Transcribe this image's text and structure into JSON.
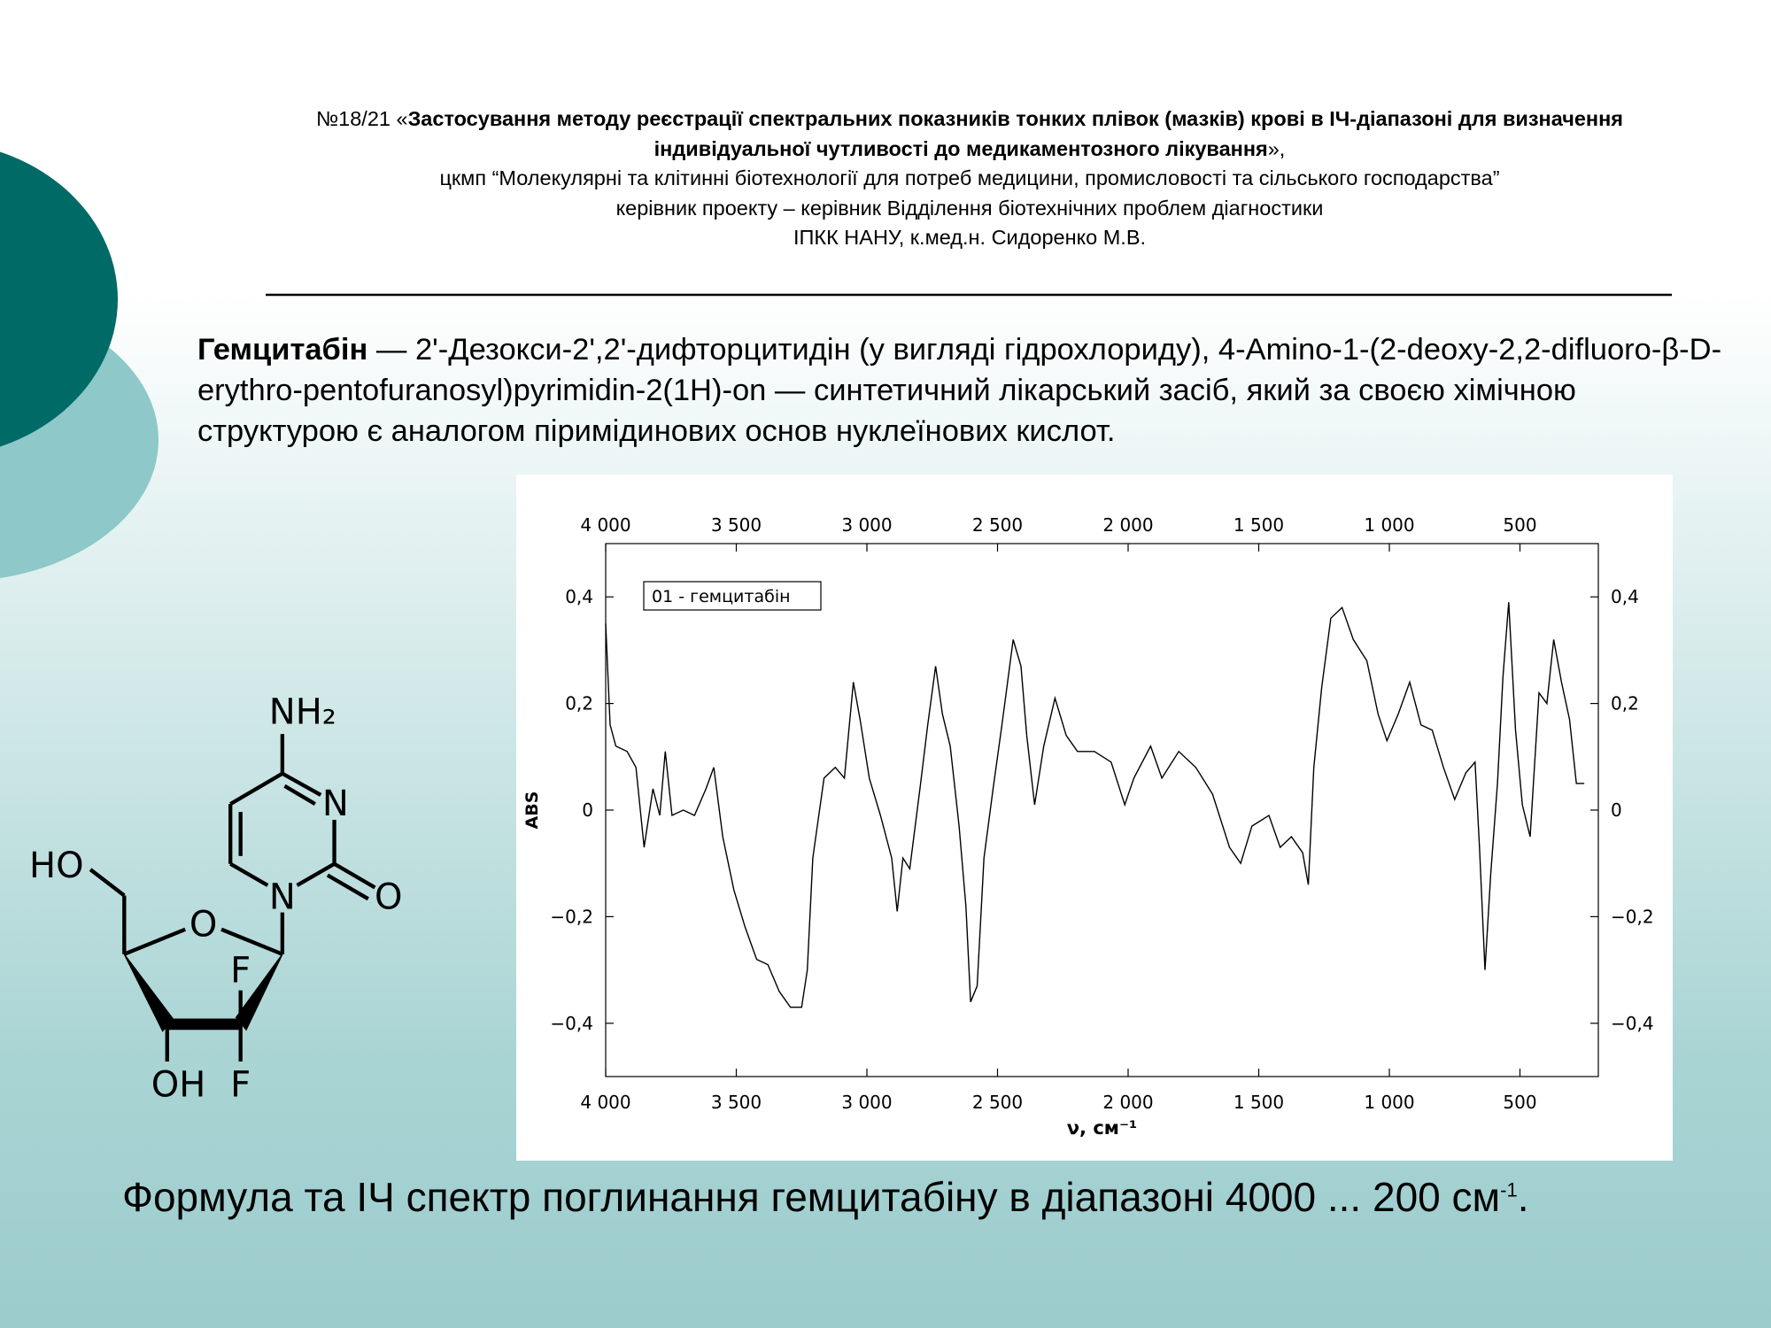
{
  "header": {
    "prefix": "№18/21 «",
    "title": "Застосування методу реєстрації спектральних показників тонких плівок (мазків) крові в ІЧ-діапазоні для визначення індивідуальної чутливості до медикаментозного лікування",
    "suffix": "»,",
    "lines": [
      "цкмп “Молекулярні та клітинні біотехнології для потреб медицини, промисловості та сільського господарства”",
      "керівник проекту – керівник Відділення біотехнічних проблем діагностики",
      "ІПКК НАНУ, к.мед.н. Сидоренко М.В."
    ]
  },
  "paragraph": {
    "term": "Гемцитабін",
    "text": "— 2'-Дезокси-2',2'-дифторцитидін (у вигляді гідрохлориду), 4-Amino-1-(2-deoxy-2,2-difluoro-β-D-erythro-pentofuranosyl)pyrimidin-2(1H)-on — синтетичний лікарський засіб, який за своєю хімічною структурою є аналогом піримідинових основ нуклеїнових кислот."
  },
  "structure": {
    "labels": [
      "NH₂",
      "N",
      "HO",
      "N",
      "O",
      "O",
      "F",
      "OH",
      "F"
    ]
  },
  "caption": {
    "text": "Формула та ІЧ спектр поглинання гемцитабіну в діапазоні 4000 ... 200 см",
    "sup": "-1",
    "end": "."
  },
  "chart_data": {
    "type": "line",
    "xlabel": "ν, см⁻¹",
    "ylabel": "ABS",
    "xlim": [
      4000,
      200
    ],
    "ylim": [
      -0.5,
      0.5
    ],
    "xticks": [
      {
        "value": 4000,
        "label": "4 000"
      },
      {
        "value": 3500,
        "label": "3 500"
      },
      {
        "value": 3000,
        "label": "3 000"
      },
      {
        "value": 2500,
        "label": "2 500"
      },
      {
        "value": 2000,
        "label": "2 000"
      },
      {
        "value": 1500,
        "label": "1 500"
      },
      {
        "value": 1000,
        "label": "1 000"
      },
      500
    ],
    "yticks": [
      {
        "value": -0.4,
        "label": "−0,4"
      },
      {
        "value": -0.2,
        "label": "−0,2"
      },
      0,
      {
        "value": 0.2,
        "label": "0,2"
      },
      {
        "value": 0.4,
        "label": "0,4"
      }
    ],
    "x": [
      4000,
      3983,
      3961,
      3918,
      3884,
      3853,
      3819,
      3793,
      3772,
      3746,
      3703,
      3660,
      3616,
      3586,
      3552,
      3509,
      3466,
      3422,
      3379,
      3336,
      3293,
      3250,
      3228,
      3207,
      3164,
      3121,
      3086,
      3052,
      3026,
      2991,
      2948,
      2905,
      2884,
      2862,
      2836,
      2797,
      2767,
      2737,
      2711,
      2681,
      2647,
      2621,
      2603,
      2578,
      2552,
      2517,
      2483,
      2440,
      2410,
      2388,
      2358,
      2323,
      2280,
      2237,
      2194,
      2129,
      2065,
      2013,
      1978,
      1914,
      1871,
      1806,
      1741,
      1677,
      1612,
      1569,
      1526,
      1461,
      1418,
      1375,
      1332,
      1310,
      1289,
      1259,
      1224,
      1181,
      1138,
      1086,
      1043,
      1009,
      966,
      922,
      879,
      836,
      793,
      750,
      707,
      672,
      655,
      634,
      612,
      586,
      565,
      543,
      517,
      491,
      461,
      427,
      397,
      371,
      341,
      310,
      284,
      254
    ],
    "series": [
      {
        "name": "01 - гемцитабін",
        "color": "#000000",
        "values": [
          0.35,
          0.16,
          0.12,
          0.11,
          0.08,
          -0.07,
          0.04,
          -0.01,
          0.11,
          -0.01,
          0.0,
          -0.01,
          0.04,
          0.08,
          -0.05,
          -0.15,
          -0.22,
          -0.28,
          -0.29,
          -0.34,
          -0.37,
          -0.37,
          -0.3,
          -0.09,
          0.06,
          0.08,
          0.06,
          0.24,
          0.17,
          0.06,
          -0.01,
          -0.09,
          -0.19,
          -0.09,
          -0.11,
          0.04,
          0.16,
          0.27,
          0.18,
          0.12,
          -0.03,
          -0.18,
          -0.36,
          -0.33,
          -0.09,
          0.04,
          0.16,
          0.32,
          0.27,
          0.14,
          0.01,
          0.12,
          0.21,
          0.14,
          0.11,
          0.11,
          0.09,
          0.01,
          0.06,
          0.12,
          0.06,
          0.11,
          0.08,
          0.03,
          -0.07,
          -0.1,
          -0.03,
          -0.01,
          -0.07,
          -0.05,
          -0.08,
          -0.14,
          0.08,
          0.23,
          0.36,
          0.38,
          0.32,
          0.28,
          0.18,
          0.13,
          0.18,
          0.24,
          0.16,
          0.15,
          0.08,
          0.02,
          0.07,
          0.09,
          -0.07,
          -0.3,
          -0.12,
          0.05,
          0.25,
          0.39,
          0.15,
          0.01,
          -0.05,
          0.22,
          0.2,
          0.32,
          0.24,
          0.17,
          0.05,
          0.05
        ]
      }
    ]
  }
}
